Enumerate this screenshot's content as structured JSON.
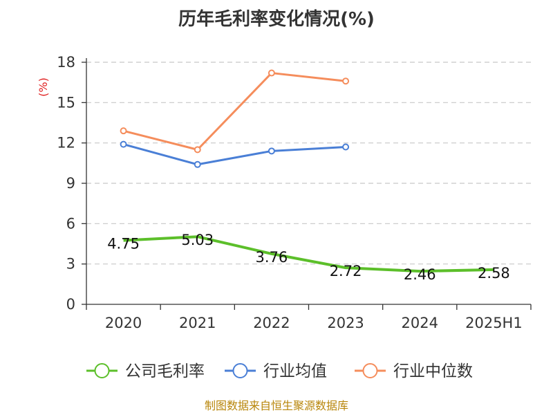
{
  "chart_data": {
    "type": "line",
    "title": "历年毛利率变化情况(%)",
    "unit_label": "(%)",
    "categories": [
      "2020",
      "2021",
      "2022",
      "2023",
      "2024",
      "2025H1"
    ],
    "ylim": [
      0,
      18
    ],
    "yticks": [
      0,
      3,
      6,
      9,
      12,
      15,
      18
    ],
    "grid": true,
    "legend_position": "bottom",
    "series": [
      {
        "name": "公司毛利率",
        "color": "#5cbf2a",
        "values": [
          4.75,
          5.03,
          3.76,
          2.72,
          2.46,
          2.58
        ],
        "labels": [
          "4.75",
          "5.03",
          "3.76",
          "2.72",
          "2.46",
          "2.58"
        ]
      },
      {
        "name": "行业均值",
        "color": "#4a7fd6",
        "values": [
          11.9,
          10.4,
          11.4,
          11.7,
          null,
          null
        ]
      },
      {
        "name": "行业中位数",
        "color": "#f58d5c",
        "values": [
          12.9,
          11.5,
          17.2,
          16.6,
          null,
          null
        ]
      }
    ]
  },
  "footer": "制图数据来自恒生聚源数据库"
}
